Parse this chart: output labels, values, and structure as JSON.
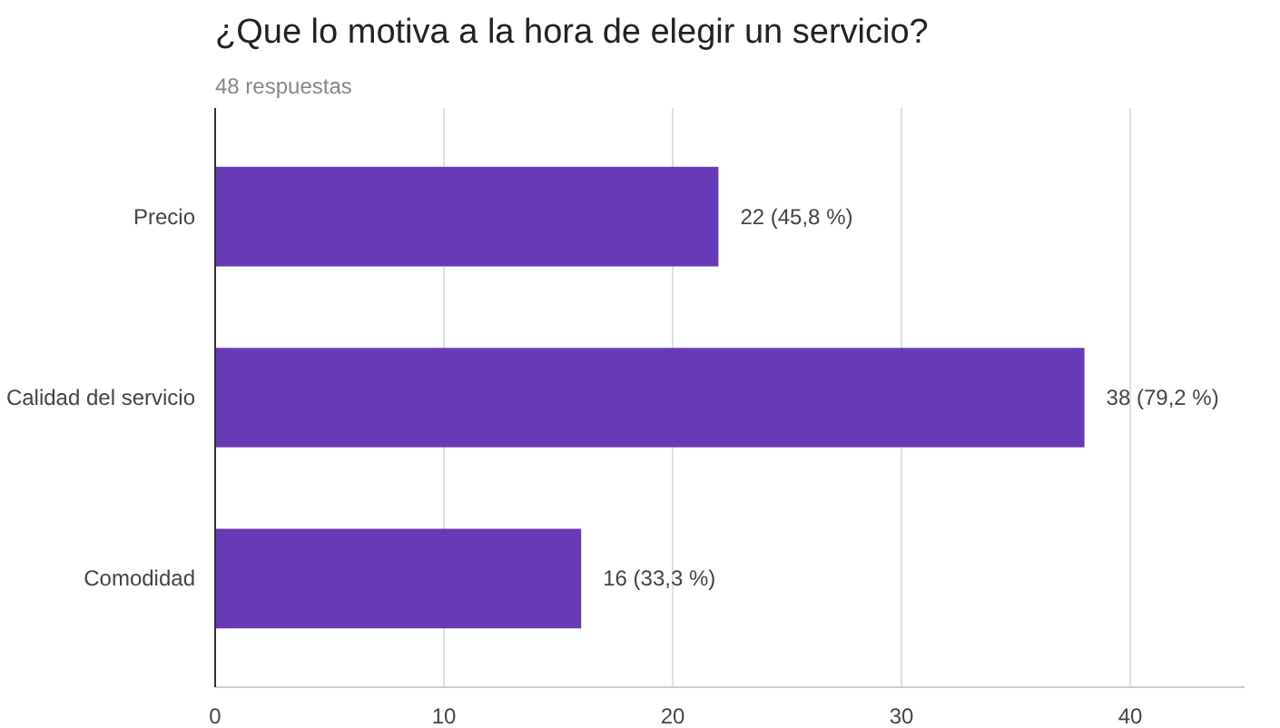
{
  "chart_data": {
    "type": "bar",
    "orientation": "horizontal",
    "title": "¿Que lo motiva a la hora de elegir un servicio?",
    "subtitle": "48 respuestas",
    "categories": [
      "Precio",
      "Calidad del servicio",
      "Comodidad"
    ],
    "values": [
      22,
      38,
      16
    ],
    "color": "#673ab7",
    "value_labels": [
      "22 (45,8 %)",
      "38 (79,2 %)",
      "16 (33,3 %)"
    ],
    "xlim": [
      0,
      45
    ],
    "xticks": [
      0,
      10,
      20,
      30,
      40
    ],
    "grid": "x"
  }
}
